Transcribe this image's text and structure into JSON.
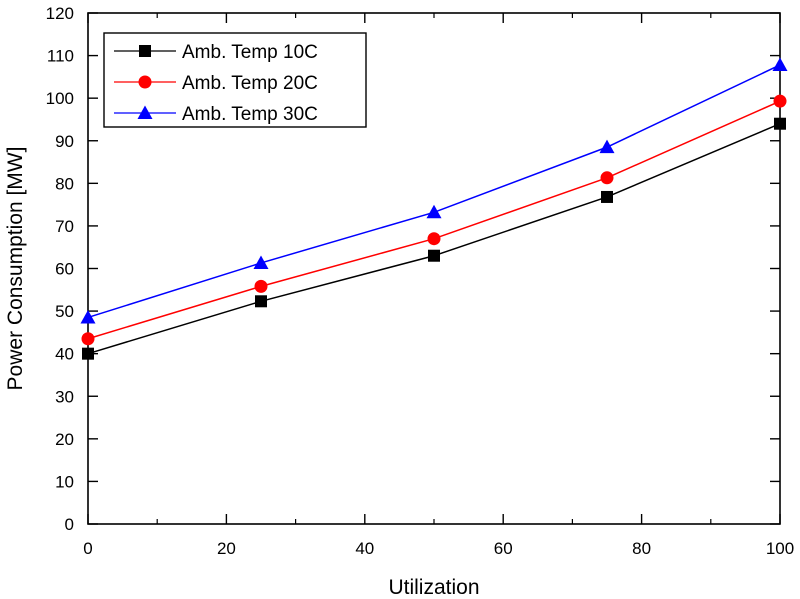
{
  "chart_data": {
    "type": "line",
    "title": "",
    "xlabel": "Utilization",
    "ylabel": "Power Consumption [MW]",
    "xlim": [
      0,
      100
    ],
    "ylim": [
      0,
      120
    ],
    "xticks": [
      "0",
      "20",
      "40",
      "60",
      "80",
      "100"
    ],
    "yticks": [
      "0",
      "10",
      "20",
      "30",
      "40",
      "50",
      "60",
      "70",
      "80",
      "90",
      "100",
      "110",
      "120"
    ],
    "grid": false,
    "legend_position": "top-left",
    "x": [
      0,
      25,
      50,
      75,
      100
    ],
    "series": [
      {
        "name": "Amb. Temp 10C",
        "values": [
          40,
          52.3,
          63,
          76.8,
          94
        ],
        "color": "#000000",
        "marker": "square"
      },
      {
        "name": "Amb. Temp 20C",
        "values": [
          43.5,
          55.8,
          67,
          81.3,
          99.3
        ],
        "color": "#ff0000",
        "marker": "circle"
      },
      {
        "name": "Amb. Temp 30C",
        "values": [
          48.5,
          61.3,
          73.2,
          88.5,
          107.8
        ],
        "color": "#0000ff",
        "marker": "triangle"
      }
    ]
  }
}
